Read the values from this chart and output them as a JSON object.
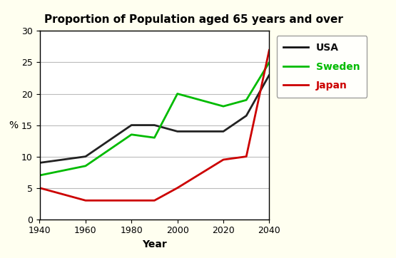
{
  "title": "Proportion of Population aged 65 years and over",
  "xlabel": "Year",
  "ylabel": "%",
  "xlim": [
    1940,
    2040
  ],
  "ylim": [
    0,
    30
  ],
  "xticks": [
    1940,
    1960,
    1980,
    2000,
    2020,
    2040
  ],
  "yticks": [
    0,
    5,
    10,
    15,
    20,
    25,
    30
  ],
  "fig_background": "#fffff0",
  "plot_bg": "#ffffff",
  "series": {
    "USA": {
      "x": [
        1940,
        1960,
        1980,
        1990,
        2000,
        2020,
        2030,
        2040
      ],
      "y": [
        9.0,
        10.0,
        15.0,
        15.0,
        14.0,
        14.0,
        16.5,
        23.0
      ],
      "color": "#222222",
      "linewidth": 2.0
    },
    "Sweden": {
      "x": [
        1940,
        1960,
        1980,
        1990,
        2000,
        2020,
        2030,
        2040
      ],
      "y": [
        7.0,
        8.5,
        13.5,
        13.0,
        20.0,
        18.0,
        19.0,
        25.0
      ],
      "color": "#00bb00",
      "linewidth": 2.0
    },
    "Japan": {
      "x": [
        1940,
        1960,
        1980,
        1990,
        2000,
        2020,
        2030,
        2040
      ],
      "y": [
        5.0,
        3.0,
        3.0,
        3.0,
        5.0,
        9.5,
        10.0,
        27.0
      ],
      "color": "#cc0000",
      "linewidth": 2.0
    }
  },
  "legend_labels": [
    "USA",
    "Sweden",
    "Japan"
  ],
  "legend_colors": [
    "#111111",
    "#00bb00",
    "#cc0000"
  ],
  "title_fontsize": 11,
  "label_fontsize": 10,
  "tick_fontsize": 9,
  "legend_fontsize": 10
}
